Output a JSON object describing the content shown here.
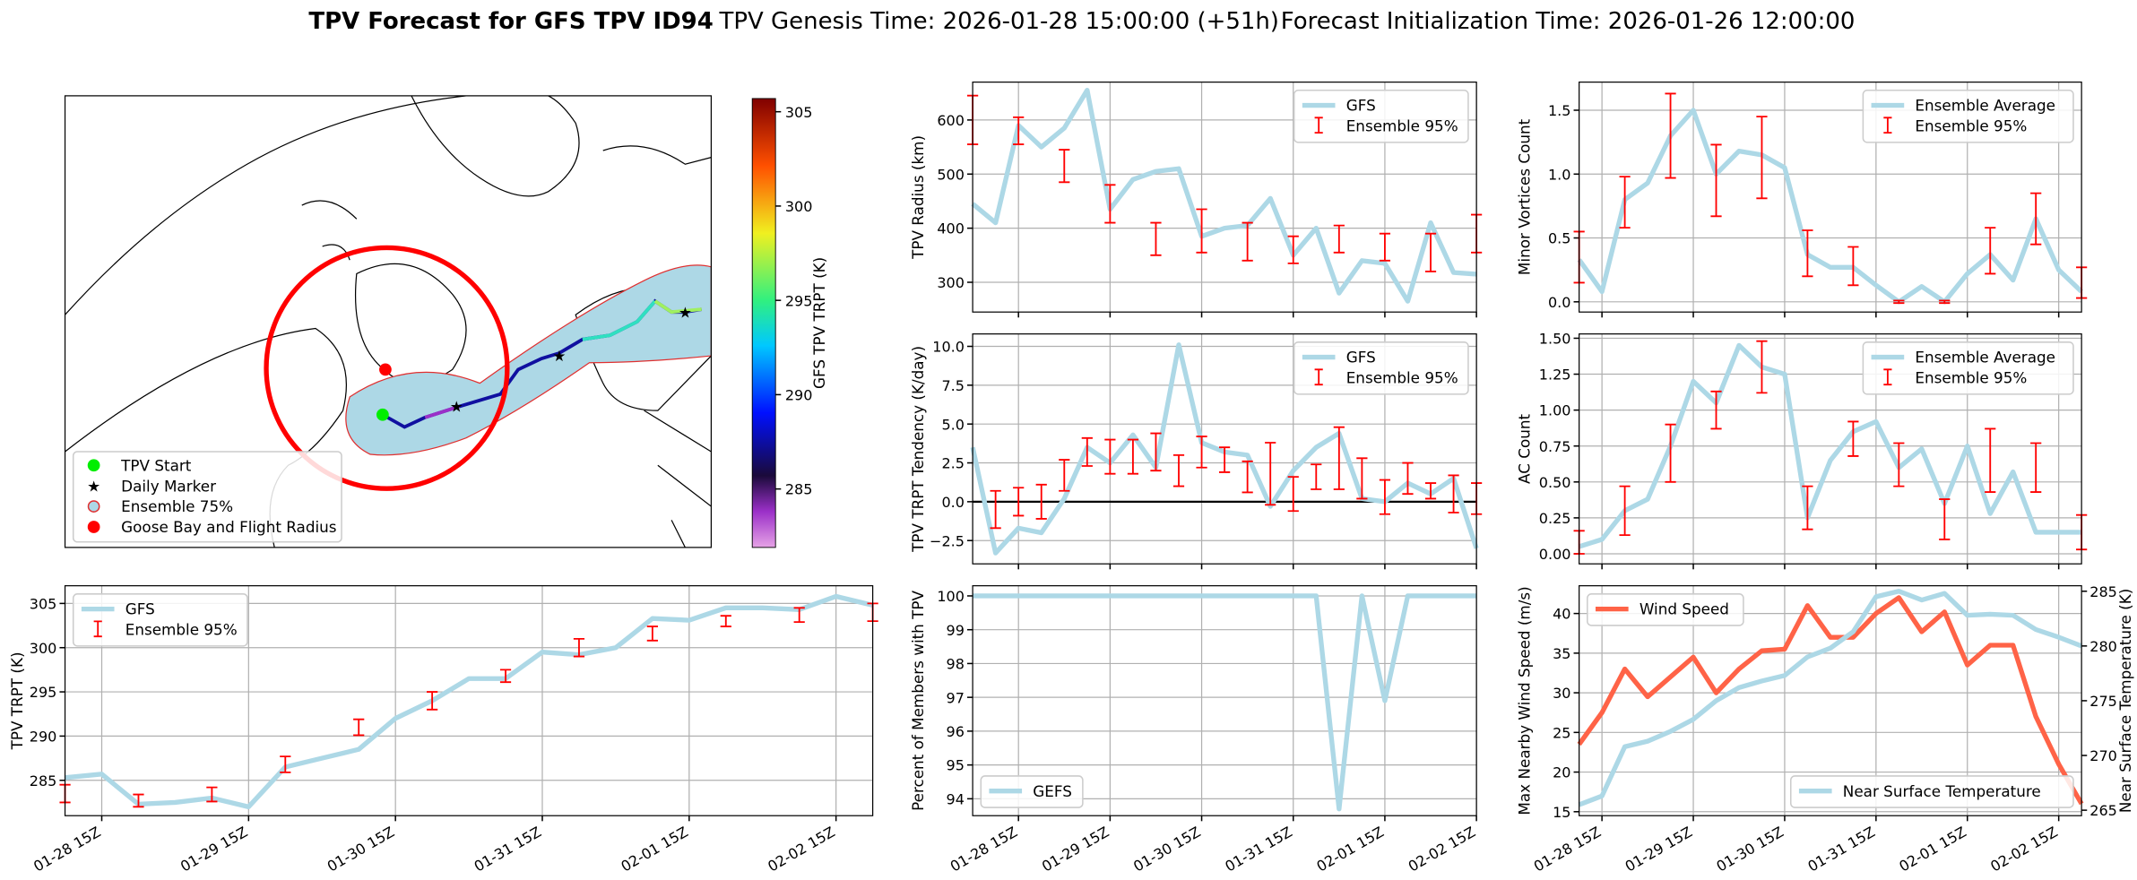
{
  "title": "TPV Forecast for GFS TPV ID94",
  "genesis": "TPV Genesis Time: 2026-01-28 15:00:00 (+51h)",
  "initialization": "Forecast Initialization Time: 2026-01-26 12:00:00",
  "map": {
    "legend": [
      "TPV Start",
      "Daily Marker",
      "Ensemble 75%",
      "Goose Bay and Flight Radius"
    ],
    "colorbar": {
      "label": "GFS TPV TRPT (K)",
      "lim": [
        281.9,
        305.7
      ],
      "ticks": [
        285,
        290,
        295,
        300,
        305
      ]
    }
  },
  "chart_data": [
    {
      "type": "line",
      "ylabel": "TPV TRPT (K)",
      "categories": [
        null,
        "01-28 15Z",
        null,
        null,
        null,
        "01-29 15Z",
        null,
        null,
        null,
        "01-30 15Z",
        null,
        null,
        null,
        "01-31 15Z",
        null,
        null,
        null,
        "02-01 15Z",
        null,
        null,
        null,
        "02-02 15Z",
        null
      ],
      "ylim": [
        281,
        307
      ],
      "yticks": [
        285,
        290,
        295,
        300,
        305
      ],
      "grid": true,
      "legend": "upper left",
      "series": [
        {
          "name": "GFS",
          "style": "line",
          "color": "#add8e6",
          "values": [
            285.3,
            285.7,
            282.3,
            282.5,
            283,
            282,
            286.5,
            287.5,
            288.5,
            292,
            294,
            296.5,
            296.5,
            299.5,
            299.2,
            300,
            303.3,
            303.1,
            304.5,
            304.5,
            304.3,
            305.8,
            304.8
          ]
        },
        {
          "name": "Ensemble 95%",
          "style": "errorbar",
          "color": "#ff0000",
          "values": [
            283.5,
            null,
            282.7,
            null,
            283.4,
            null,
            286.8,
            null,
            291,
            null,
            294,
            null,
            296.8,
            null,
            300,
            null,
            301.6,
            null,
            303,
            null,
            303.7,
            null,
            304
          ],
          "errors": [
            1,
            null,
            0.7,
            null,
            0.8,
            null,
            0.9,
            null,
            0.9,
            null,
            1,
            null,
            0.7,
            null,
            1,
            null,
            0.8,
            null,
            0.6,
            null,
            0.8,
            null,
            1
          ]
        }
      ]
    },
    {
      "type": "line",
      "ylabel": "TPV Radius (km)",
      "ylim": [
        245,
        670
      ],
      "yticks": [
        300,
        400,
        500,
        600
      ],
      "grid": true,
      "legend": "upper right",
      "series": [
        {
          "name": "GFS",
          "style": "line",
          "color": "#add8e6",
          "values": [
            445,
            410,
            590,
            550,
            585,
            655,
            435,
            490,
            505,
            510,
            385,
            400,
            405,
            455,
            350,
            400,
            280,
            340,
            335,
            265,
            410,
            318,
            315
          ]
        },
        {
          "name": "Ensemble 95%",
          "style": "errorbar",
          "color": "#ff0000",
          "values": [
            600,
            null,
            580,
            null,
            515,
            null,
            445,
            null,
            380,
            null,
            395,
            null,
            375,
            null,
            360,
            null,
            380,
            null,
            365,
            null,
            355,
            null,
            390
          ],
          "errors": [
            45,
            null,
            25,
            null,
            30,
            null,
            35,
            null,
            30,
            null,
            40,
            null,
            35,
            null,
            25,
            null,
            25,
            null,
            25,
            null,
            35,
            null,
            35
          ]
        }
      ]
    },
    {
      "type": "line",
      "ylabel": "TPV TRPT Tendency (K/day)",
      "ylim": [
        -4,
        10.8
      ],
      "yticks": [
        {
          "value": -2.5,
          "label": "−2.5"
        },
        {
          "value": 0,
          "label": "0.0"
        },
        {
          "value": 2.5,
          "label": "2.5"
        },
        {
          "value": 5,
          "label": "5.0"
        },
        {
          "value": 7.5,
          "label": "7.5"
        },
        {
          "value": 10,
          "label": "10.0"
        }
      ],
      "hline": 0,
      "grid": true,
      "legend": "upper right",
      "series": [
        {
          "name": "GFS",
          "style": "line",
          "color": "#add8e6",
          "values": [
            3.5,
            -3.3,
            -1.7,
            -2,
            0.2,
            3.5,
            2.5,
            4.3,
            2.2,
            10.1,
            3.8,
            3.2,
            3,
            -0.3,
            2,
            3.5,
            4.4,
            0.2,
            0,
            1.2,
            0.5,
            1.5,
            -3
          ]
        },
        {
          "name": "Ensemble 95%",
          "style": "errorbar",
          "color": "#ff0000",
          "values": [
            null,
            -0.5,
            0,
            0,
            1.7,
            3.2,
            2.9,
            2.9,
            3.2,
            2,
            3.2,
            2.7,
            1.6,
            1.8,
            0.5,
            1.6,
            2.8,
            1.5,
            0.3,
            1.5,
            0.7,
            0.5,
            0.2
          ],
          "errors": [
            null,
            1.2,
            0.9,
            1.1,
            1,
            0.9,
            1.1,
            1.1,
            1.2,
            1,
            1,
            0.8,
            1,
            2,
            1.1,
            0.8,
            2,
            1.3,
            1.1,
            1,
            0.5,
            1.2,
            1
          ]
        }
      ]
    },
    {
      "type": "line",
      "ylabel": "Percent of Members with TPV",
      "categories": [
        null,
        null,
        "01-28 15Z",
        null,
        null,
        null,
        "01-29 15Z",
        null,
        null,
        null,
        "01-30 15Z",
        null,
        null,
        null,
        "01-31 15Z",
        null,
        null,
        null,
        "02-01 15Z",
        null,
        null,
        null,
        "02-02 15Z"
      ],
      "ylim": [
        93.5,
        100.3
      ],
      "yticks": [
        94,
        95,
        96,
        97,
        98,
        99,
        100
      ],
      "grid": true,
      "legend": "lower left",
      "series": [
        {
          "name": "GEFS",
          "style": "line",
          "color": "#add8e6",
          "values": [
            100,
            100,
            100,
            100,
            100,
            100,
            100,
            100,
            100,
            100,
            100,
            100,
            100,
            100,
            100,
            100,
            93.7,
            100,
            96.9,
            100,
            100,
            100,
            100
          ]
        }
      ]
    },
    {
      "type": "line",
      "ylabel": "Minor Vortices Count",
      "ylim": [
        -0.08,
        1.72
      ],
      "yticks": [
        {
          "value": 0,
          "label": "0.0"
        },
        {
          "value": 0.5,
          "label": "0.5"
        },
        {
          "value": 1,
          "label": "1.0"
        },
        {
          "value": 1.5,
          "label": "1.5"
        }
      ],
      "grid": true,
      "legend": "upper right",
      "series": [
        {
          "name": "Ensemble Average",
          "style": "line",
          "color": "#add8e6",
          "values": [
            0.33,
            0.08,
            0.8,
            0.93,
            1.3,
            1.5,
            1.0,
            1.18,
            1.15,
            1.05,
            0.37,
            0.27,
            0.27,
            0.13,
            0,
            0.12,
            0,
            0.22,
            0.37,
            0.17,
            0.65,
            0.25,
            0.08
          ]
        },
        {
          "name": "Ensemble 95%",
          "style": "errorbar",
          "color": "#ff0000",
          "values": [
            0.35,
            null,
            0.78,
            null,
            1.3,
            null,
            0.95,
            null,
            1.13,
            null,
            0.38,
            null,
            0.28,
            null,
            0,
            null,
            0,
            null,
            0.4,
            null,
            0.65,
            null,
            0.15
          ],
          "errors": [
            0.2,
            null,
            0.2,
            null,
            0.33,
            null,
            0.28,
            null,
            0.32,
            null,
            0.18,
            null,
            0.15,
            null,
            0.01,
            null,
            0.01,
            null,
            0.18,
            null,
            0.2,
            null,
            0.12
          ]
        }
      ]
    },
    {
      "type": "line",
      "ylabel": "AC Count",
      "ylim": [
        -0.07,
        1.53
      ],
      "yticks": [
        {
          "value": 0,
          "label": "0.00"
        },
        {
          "value": 0.25,
          "label": "0.25"
        },
        {
          "value": 0.5,
          "label": "0.50"
        },
        {
          "value": 0.75,
          "label": "0.75"
        },
        {
          "value": 1,
          "label": "1.00"
        },
        {
          "value": 1.25,
          "label": "1.25"
        },
        {
          "value": 1.5,
          "label": "1.50"
        }
      ],
      "grid": true,
      "legend": "upper right",
      "series": [
        {
          "name": "Ensemble Average",
          "style": "line",
          "color": "#add8e6",
          "values": [
            0.05,
            0.1,
            0.3,
            0.38,
            0.75,
            1.2,
            1.05,
            1.45,
            1.3,
            1.25,
            0.25,
            0.65,
            0.85,
            0.92,
            0.6,
            0.73,
            0.35,
            0.75,
            0.28,
            0.57,
            0.15,
            0.15,
            0.15
          ]
        },
        {
          "name": "Ensemble 95%",
          "style": "errorbar",
          "color": "#ff0000",
          "values": [
            0.08,
            null,
            0.3,
            null,
            0.7,
            null,
            1.0,
            null,
            1.3,
            null,
            0.32,
            null,
            0.8,
            null,
            0.62,
            null,
            0.24,
            null,
            0.65,
            null,
            0.6,
            null,
            0.15
          ],
          "errors": [
            0.08,
            null,
            0.17,
            null,
            0.2,
            null,
            0.13,
            null,
            0.18,
            null,
            0.15,
            null,
            0.12,
            null,
            0.15,
            null,
            0.14,
            null,
            0.22,
            null,
            0.17,
            null,
            0.12
          ]
        }
      ]
    },
    {
      "type": "line",
      "ylabel": "Max Nearby Wind Speed (m/s)",
      "y2label": "Near Surface Temperature (K)",
      "categories": [
        null,
        "01-28 15Z",
        null,
        null,
        null,
        "01-29 15Z",
        null,
        null,
        null,
        "01-30 15Z",
        null,
        null,
        null,
        "01-31 15Z",
        null,
        null,
        null,
        "02-01 15Z",
        null,
        null,
        null,
        "02-02 15Z",
        null
      ],
      "ylim": [
        14.5,
        43.5
      ],
      "yticks": [
        15,
        20,
        25,
        30,
        35,
        40
      ],
      "y2lim": [
        264.5,
        285.5
      ],
      "y2ticks": [
        265,
        270,
        275,
        280,
        285
      ],
      "ycolor": "#ff6347",
      "y2color": "#4169e1",
      "grid": true,
      "legend": "upper left",
      "legend2": "lower right",
      "series": [
        {
          "name": "Wind Speed",
          "style": "line",
          "color": "#ff6347",
          "values": [
            23.5,
            27.5,
            33,
            29.5,
            32,
            34.5,
            30,
            33,
            35.3,
            35.5,
            41,
            37,
            37,
            40,
            42,
            37.7,
            40.2,
            33.5,
            36,
            36,
            27,
            21,
            16
          ]
        },
        {
          "name": "Near Surface Temperature",
          "style": "line",
          "color": "#add8e6",
          "axis": "y2",
          "values": [
            265.5,
            266.3,
            270.8,
            271.3,
            272.2,
            273.3,
            275,
            276.2,
            276.8,
            277.3,
            279,
            279.8,
            281.3,
            284.5,
            285,
            284.2,
            284.8,
            282.8,
            282.9,
            282.8,
            281.5,
            280.8,
            280
          ]
        }
      ]
    }
  ]
}
